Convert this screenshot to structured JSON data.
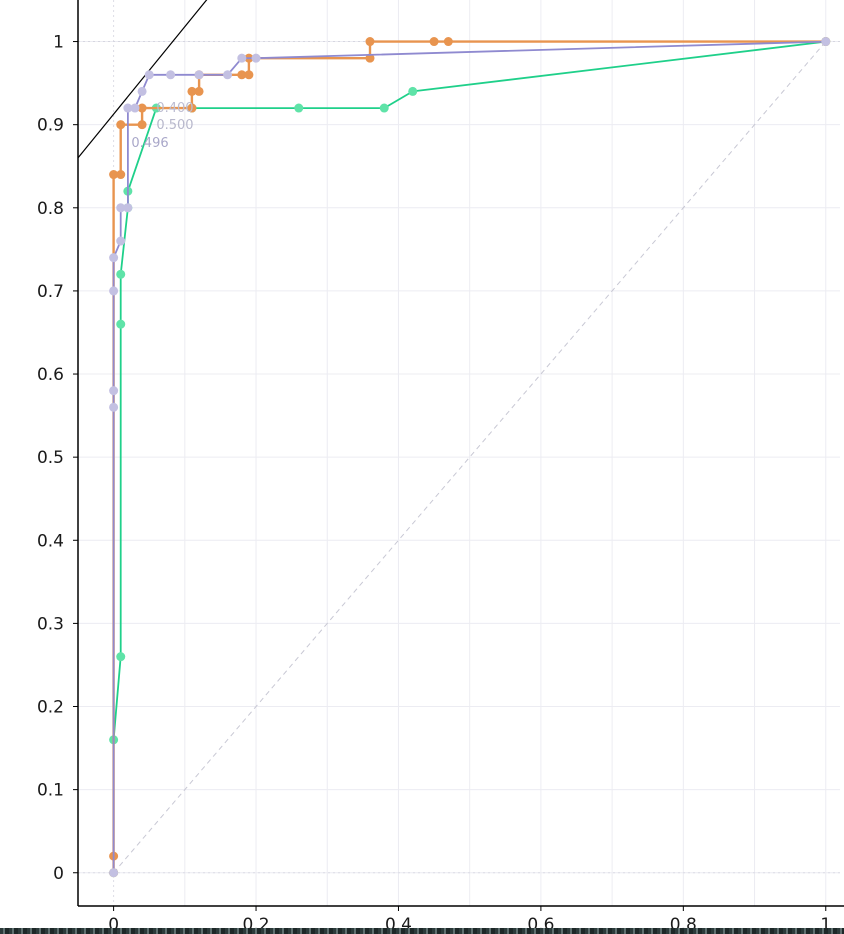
{
  "chart_data": {
    "type": "line",
    "title": "",
    "xlabel": "",
    "ylabel": "",
    "xlim": [
      -0.05,
      1.02
    ],
    "ylim": [
      -0.04,
      1.05
    ],
    "x_ticks": [
      "0",
      "0.2",
      "0.4",
      "0.6",
      "0.8",
      "1"
    ],
    "x_tick_values": [
      0,
      0.2,
      0.4,
      0.6,
      0.8,
      1
    ],
    "y_ticks": [
      "0",
      "0.1",
      "0.2",
      "0.3",
      "0.4",
      "0.5",
      "0.6",
      "0.7",
      "0.8",
      "0.9",
      "1"
    ],
    "y_tick_values": [
      0,
      0.1,
      0.2,
      0.3,
      0.4,
      0.5,
      0.6,
      0.7,
      0.8,
      0.9,
      1
    ],
    "grid": true,
    "diagonal": {
      "x": [
        0,
        1
      ],
      "y": [
        0,
        1
      ],
      "color": "#c8c8d4",
      "style": "dashed"
    },
    "iso_line": {
      "x": [
        -0.05,
        0.14
      ],
      "y": [
        0.86,
        1.06
      ],
      "color": "#000000"
    },
    "series": [
      {
        "color": "#1fd08a",
        "marker_color": "#5fe3a8",
        "x": [
          0,
          0,
          0.01,
          0.01,
          0.01,
          0.02,
          0.02,
          0.06,
          0.11,
          0.26,
          0.38,
          0.42,
          1
        ],
        "y": [
          0,
          0.16,
          0.26,
          0.66,
          0.72,
          0.8,
          0.82,
          0.92,
          0.92,
          0.92,
          0.92,
          0.94,
          1
        ]
      },
      {
        "color": "#e8944f",
        "marker_color": "#e8944f",
        "x": [
          0,
          0,
          0,
          0.01,
          0.01,
          0.04,
          0.04,
          0.11,
          0.11,
          0.12,
          0.12,
          0.18,
          0.19,
          0.19,
          0.36,
          0.36,
          0.45,
          0.47,
          1
        ],
        "y": [
          0,
          0.02,
          0.84,
          0.84,
          0.9,
          0.9,
          0.92,
          0.92,
          0.94,
          0.94,
          0.96,
          0.96,
          0.96,
          0.98,
          0.98,
          1.0,
          1.0,
          1.0,
          1
        ]
      },
      {
        "color": "#8f8ad0",
        "marker_color": "#c3c0e2",
        "x": [
          0,
          0,
          0,
          0,
          0,
          0.01,
          0.01,
          0.02,
          0.02,
          0.03,
          0.04,
          0.05,
          0.08,
          0.12,
          0.16,
          0.18,
          0.2,
          1
        ],
        "y": [
          0,
          0.56,
          0.58,
          0.7,
          0.74,
          0.76,
          0.8,
          0.8,
          0.92,
          0.92,
          0.94,
          0.96,
          0.96,
          0.96,
          0.96,
          0.98,
          0.98,
          1
        ]
      }
    ],
    "annotations": [
      {
        "text": "0.400",
        "x": 0.06,
        "y": 0.915,
        "color": "#bdbdd2"
      },
      {
        "text": "0.500",
        "x": 0.06,
        "y": 0.895,
        "color": "#b8b8cc"
      },
      {
        "text": "0.496",
        "x": 0.025,
        "y": 0.873,
        "color": "#a9a7c9"
      }
    ]
  }
}
